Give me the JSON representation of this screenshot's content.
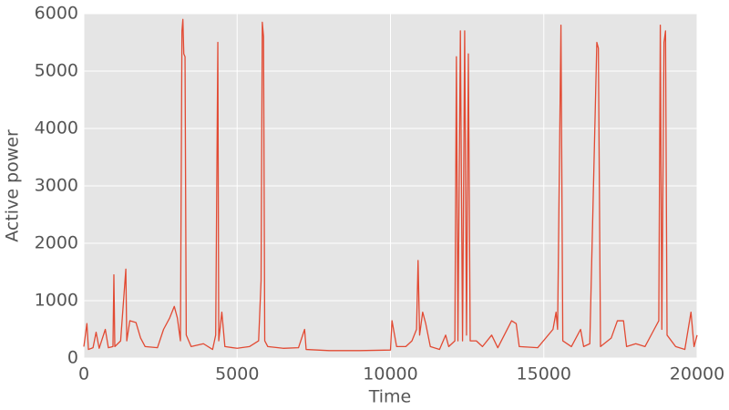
{
  "chart_data": {
    "type": "line",
    "xlabel": "Time",
    "ylabel": "Active power",
    "x": [
      0,
      100,
      150,
      300,
      400,
      500,
      700,
      800,
      950,
      980,
      1010,
      1200,
      1370,
      1400,
      1500,
      1700,
      1850,
      2000,
      2400,
      2600,
      2800,
      2950,
      3050,
      3150,
      3200,
      3230,
      3260,
      3300,
      3340,
      3500,
      3900,
      4200,
      4300,
      4370,
      4400,
      4500,
      4600,
      5000,
      5400,
      5700,
      5780,
      5820,
      5860,
      5900,
      6000,
      6500,
      7000,
      7200,
      7250,
      8000,
      9000,
      10000,
      10050,
      10200,
      10500,
      10700,
      10850,
      10900,
      10950,
      11050,
      11150,
      11300,
      11600,
      11800,
      11900,
      12100,
      12150,
      12200,
      12280,
      12350,
      12420,
      12480,
      12540,
      12600,
      12800,
      13000,
      13300,
      13500,
      13950,
      14100,
      14200,
      14800,
      15300,
      15400,
      15450,
      15560,
      15620,
      15900,
      16200,
      16300,
      16500,
      16730,
      16780,
      16850,
      17200,
      17400,
      17600,
      17700,
      18000,
      18300,
      18600,
      18750,
      18800,
      18850,
      18920,
      18970,
      19020,
      19300,
      19600,
      19800,
      19900,
      20000
    ],
    "series": [
      {
        "name": "Active power",
        "color": "#e24a33",
        "values": [
          200,
          600,
          150,
          180,
          450,
          170,
          500,
          180,
          200,
          1450,
          200,
          300,
          1550,
          300,
          650,
          620,
          350,
          200,
          180,
          500,
          700,
          900,
          700,
          300,
          5700,
          5900,
          5300,
          5250,
          400,
          200,
          250,
          150,
          400,
          5500,
          300,
          800,
          200,
          170,
          200,
          300,
          1350,
          5850,
          5600,
          300,
          200,
          170,
          180,
          500,
          150,
          130,
          130,
          140,
          650,
          200,
          200,
          300,
          500,
          1700,
          400,
          800,
          600,
          200,
          150,
          400,
          200,
          300,
          5250,
          300,
          5700,
          300,
          5700,
          400,
          5300,
          300,
          300,
          200,
          400,
          180,
          650,
          600,
          200,
          180,
          500,
          800,
          500,
          5800,
          300,
          200,
          500,
          200,
          250,
          5500,
          5400,
          200,
          350,
          650,
          650,
          200,
          250,
          200,
          500,
          650,
          5800,
          500,
          5500,
          5700,
          400,
          200,
          150,
          800,
          200,
          400
        ]
      }
    ],
    "xlim": [
      0,
      20000
    ],
    "ylim": [
      0,
      6000
    ],
    "xticks": [
      0,
      5000,
      10000,
      15000,
      20000
    ],
    "yticks": [
      0,
      1000,
      2000,
      3000,
      4000,
      5000,
      6000
    ],
    "grid": true
  }
}
